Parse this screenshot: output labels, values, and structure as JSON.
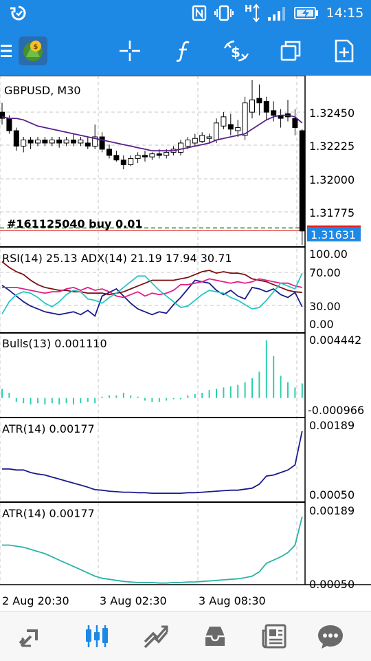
{
  "status_bar": {
    "time": "14:15",
    "icons": [
      "sync-icon",
      "nfc-icon",
      "vibrate-icon",
      "data-arrows-icon",
      "signal-icon",
      "battery-charging-icon"
    ]
  },
  "toolbar": {
    "icons": [
      "menu-icon",
      "app-logo-icon",
      "crosshair-icon",
      "indicator-function-icon",
      "trade-icon",
      "window-icon",
      "new-chart-icon"
    ]
  },
  "bottom_nav": {
    "items": [
      "quotes-icon",
      "chart-icon",
      "trade-tab-icon",
      "history-icon",
      "news-icon",
      "messages-icon"
    ],
    "active_index": 1
  },
  "chart_data": [
    {
      "type": "candlestick",
      "title": "GBPUSD, M30",
      "ylim": [
        1.3154,
        1.3261
      ],
      "yticks": [
        "1.32450",
        "1.32225",
        "1.32000",
        "1.31775"
      ],
      "price_label": "1.31631",
      "order_label": "#161125040 buy 0.01",
      "order_level": 1.3165,
      "ohlc": [
        [
          1.324,
          1.3246,
          1.3232,
          1.3236
        ],
        [
          1.3236,
          1.3238,
          1.3226,
          1.3228
        ],
        [
          1.3228,
          1.323,
          1.3215,
          1.3218
        ],
        [
          1.3218,
          1.3224,
          1.3214,
          1.3222
        ],
        [
          1.3222,
          1.3224,
          1.3216,
          1.322
        ],
        [
          1.322,
          1.3224,
          1.3218,
          1.3222
        ],
        [
          1.3222,
          1.3224,
          1.3218,
          1.322
        ],
        [
          1.322,
          1.3224,
          1.3218,
          1.3222
        ],
        [
          1.3222,
          1.3224,
          1.3217,
          1.322
        ],
        [
          1.322,
          1.3224,
          1.3218,
          1.3222
        ],
        [
          1.3222,
          1.3226,
          1.3218,
          1.322
        ],
        [
          1.322,
          1.3224,
          1.3218,
          1.3222
        ],
        [
          1.322,
          1.3224,
          1.3216,
          1.3218
        ],
        [
          1.3218,
          1.3232,
          1.3216,
          1.3224
        ],
        [
          1.3224,
          1.3227,
          1.3214,
          1.3216
        ],
        [
          1.3216,
          1.3219,
          1.321,
          1.3212
        ],
        [
          1.3212,
          1.3215,
          1.3208,
          1.3209
        ],
        [
          1.3209,
          1.3212,
          1.3203,
          1.3206
        ],
        [
          1.3206,
          1.3212,
          1.3205,
          1.321
        ],
        [
          1.321,
          1.3214,
          1.3207,
          1.3212
        ],
        [
          1.3212,
          1.3215,
          1.3208,
          1.3211
        ],
        [
          1.3211,
          1.3214,
          1.3209,
          1.3213
        ],
        [
          1.3213,
          1.3216,
          1.321,
          1.3212
        ],
        [
          1.3212,
          1.3216,
          1.321,
          1.3214
        ],
        [
          1.3214,
          1.3218,
          1.3212,
          1.3216
        ],
        [
          1.3214,
          1.3222,
          1.3212,
          1.322
        ],
        [
          1.3218,
          1.3224,
          1.3216,
          1.3222
        ],
        [
          1.322,
          1.3226,
          1.3218,
          1.3223
        ],
        [
          1.3221,
          1.3227,
          1.322,
          1.3225
        ],
        [
          1.3223,
          1.3226,
          1.322,
          1.3224
        ],
        [
          1.3222,
          1.3236,
          1.322,
          1.3233
        ],
        [
          1.3231,
          1.324,
          1.3229,
          1.3237
        ],
        [
          1.3232,
          1.3239,
          1.3225,
          1.3229
        ],
        [
          1.3228,
          1.3235,
          1.3224,
          1.323
        ],
        [
          1.3225,
          1.325,
          1.3222,
          1.3246
        ],
        [
          1.324,
          1.3261,
          1.3236,
          1.3248
        ],
        [
          1.3249,
          1.3258,
          1.3238,
          1.3246
        ],
        [
          1.3247,
          1.325,
          1.3235,
          1.324
        ],
        [
          1.3241,
          1.3247,
          1.3234,
          1.3238
        ],
        [
          1.3238,
          1.3242,
          1.323,
          1.3236
        ],
        [
          1.3239,
          1.3248,
          1.3234,
          1.3237
        ],
        [
          1.3236,
          1.3242,
          1.3225,
          1.323
        ],
        [
          1.3228,
          1.3229,
          1.3154,
          1.3163
        ]
      ],
      "ma": [
        1.3237,
        1.3236,
        1.3236,
        1.3235,
        1.3233,
        1.3231,
        1.323,
        1.3229,
        1.3228,
        1.3227,
        1.3226,
        1.3225,
        1.3224,
        1.3223,
        1.3222,
        1.3221,
        1.322,
        1.3219,
        1.3218,
        1.3217,
        1.3216,
        1.3215,
        1.3215,
        1.3215,
        1.3215,
        1.3216,
        1.3217,
        1.3218,
        1.3219,
        1.322,
        1.3222,
        1.3223,
        1.3224,
        1.3225,
        1.3226,
        1.3229,
        1.3232,
        1.3235,
        1.3237,
        1.3238,
        1.3238,
        1.3237,
        1.3233
      ]
    },
    {
      "type": "line",
      "title": "RSI(14) 25.13 ADX(14) 21.19 17.94 30.71",
      "ylim": [
        0,
        100
      ],
      "yticks": [
        "100.00",
        "70.00",
        "30.00",
        "0.00"
      ],
      "series": [
        {
          "color": "#1a1a8c",
          "values": [
            55,
            48,
            40,
            32,
            26,
            22,
            18,
            16,
            14,
            16,
            18,
            14,
            20,
            12,
            40,
            45,
            50,
            40,
            30,
            22,
            18,
            14,
            18,
            16,
            28,
            38,
            50,
            62,
            60,
            58,
            48,
            42,
            48,
            40,
            36,
            52,
            50,
            46,
            50,
            42,
            38,
            45,
            25
          ]
        },
        {
          "color": "#7a1010",
          "values": [
            88,
            80,
            74,
            70,
            62,
            56,
            52,
            50,
            48,
            48,
            46,
            46,
            44,
            44,
            44,
            42,
            44,
            46,
            50,
            54,
            58,
            62,
            62,
            62,
            62,
            64,
            66,
            70,
            74,
            76,
            72,
            74,
            72,
            72,
            70,
            64,
            62,
            60,
            56,
            52,
            48,
            46,
            45
          ]
        },
        {
          "color": "#e01e8a",
          "values": [
            52,
            52,
            52,
            50,
            48,
            46,
            44,
            46,
            46,
            50,
            52,
            48,
            52,
            48,
            50,
            46,
            40,
            38,
            42,
            46,
            40,
            44,
            42,
            44,
            48,
            56,
            56,
            58,
            60,
            64,
            62,
            60,
            58,
            60,
            58,
            60,
            64,
            62,
            60,
            58,
            58,
            54,
            52
          ]
        },
        {
          "color": "#27c7c0",
          "values": [
            15,
            32,
            42,
            46,
            44,
            38,
            30,
            25,
            32,
            42,
            48,
            46,
            36,
            34,
            30,
            38,
            44,
            52,
            60,
            68,
            68,
            58,
            48,
            40,
            32,
            24,
            26,
            34,
            42,
            48,
            46,
            44,
            38,
            34,
            28,
            22,
            24,
            34,
            46,
            58,
            54,
            50,
            72
          ]
        }
      ]
    },
    {
      "type": "bar",
      "title": "Bulls(13) 0.001110",
      "ylim": [
        -0.000966,
        0.004442
      ],
      "yticks": [
        "0.004442",
        "-0.000966"
      ],
      "color": "#2ccfae",
      "values": [
        0.0007,
        0.0004,
        -0.0003,
        -0.0004,
        -0.0005,
        -0.0004,
        -0.0005,
        -0.0004,
        -0.0005,
        -0.0004,
        -0.0005,
        -0.0004,
        -0.0003,
        -0.0004,
        0.0001,
        0.0002,
        0.0002,
        0.0004,
        0.0002,
        0.0001,
        -0.0002,
        -0.0003,
        -0.0003,
        -0.0002,
        -0.0001,
        -0.0001,
        0.0002,
        0.0003,
        0.0004,
        0.0006,
        0.0007,
        0.0008,
        0.0009,
        0.001,
        0.0012,
        0.0015,
        0.002,
        0.0044,
        0.0032,
        0.0017,
        0.0012,
        0.0008,
        0.00111
      ]
    },
    {
      "type": "line",
      "title": "ATR(14) 0.00177",
      "ylim": [
        0.0005,
        0.00189
      ],
      "yticks": [
        "0.00189",
        "0.00050"
      ],
      "color": "#1a1a8c",
      "values": [
        0.00102,
        0.00102,
        0.001,
        0.001,
        0.00095,
        0.00092,
        0.0009,
        0.00086,
        0.00082,
        0.00078,
        0.00074,
        0.0007,
        0.00066,
        0.00061,
        0.0006,
        0.00058,
        0.00057,
        0.00056,
        0.00056,
        0.00055,
        0.00055,
        0.00054,
        0.00054,
        0.00054,
        0.00054,
        0.00054,
        0.00055,
        0.00055,
        0.00056,
        0.00057,
        0.00058,
        0.00059,
        0.0006,
        0.0006,
        0.00062,
        0.00064,
        0.00072,
        0.00088,
        0.0009,
        0.00095,
        0.001,
        0.0011,
        0.00177
      ]
    },
    {
      "type": "line",
      "title": "ATR(14) 0.00177",
      "ylim": [
        0.0005,
        0.00189
      ],
      "yticks": [
        "0.00189",
        "0.00050"
      ],
      "color": "#28b3a7",
      "values": [
        0.00124,
        0.00124,
        0.00122,
        0.0012,
        0.00116,
        0.00112,
        0.00108,
        0.00102,
        0.00096,
        0.0009,
        0.00084,
        0.00078,
        0.00072,
        0.00066,
        0.00062,
        0.0006,
        0.00058,
        0.00056,
        0.00055,
        0.00054,
        0.00054,
        0.00054,
        0.00053,
        0.00053,
        0.00054,
        0.00054,
        0.00055,
        0.00055,
        0.00056,
        0.00057,
        0.00058,
        0.00059,
        0.0006,
        0.00061,
        0.00063,
        0.00066,
        0.00074,
        0.0009,
        0.00096,
        0.00102,
        0.0011,
        0.00124,
        0.00177
      ]
    }
  ],
  "x_labels": [
    "2 Aug 20:30",
    "3 Aug 02:30",
    "3 Aug 08:30"
  ]
}
